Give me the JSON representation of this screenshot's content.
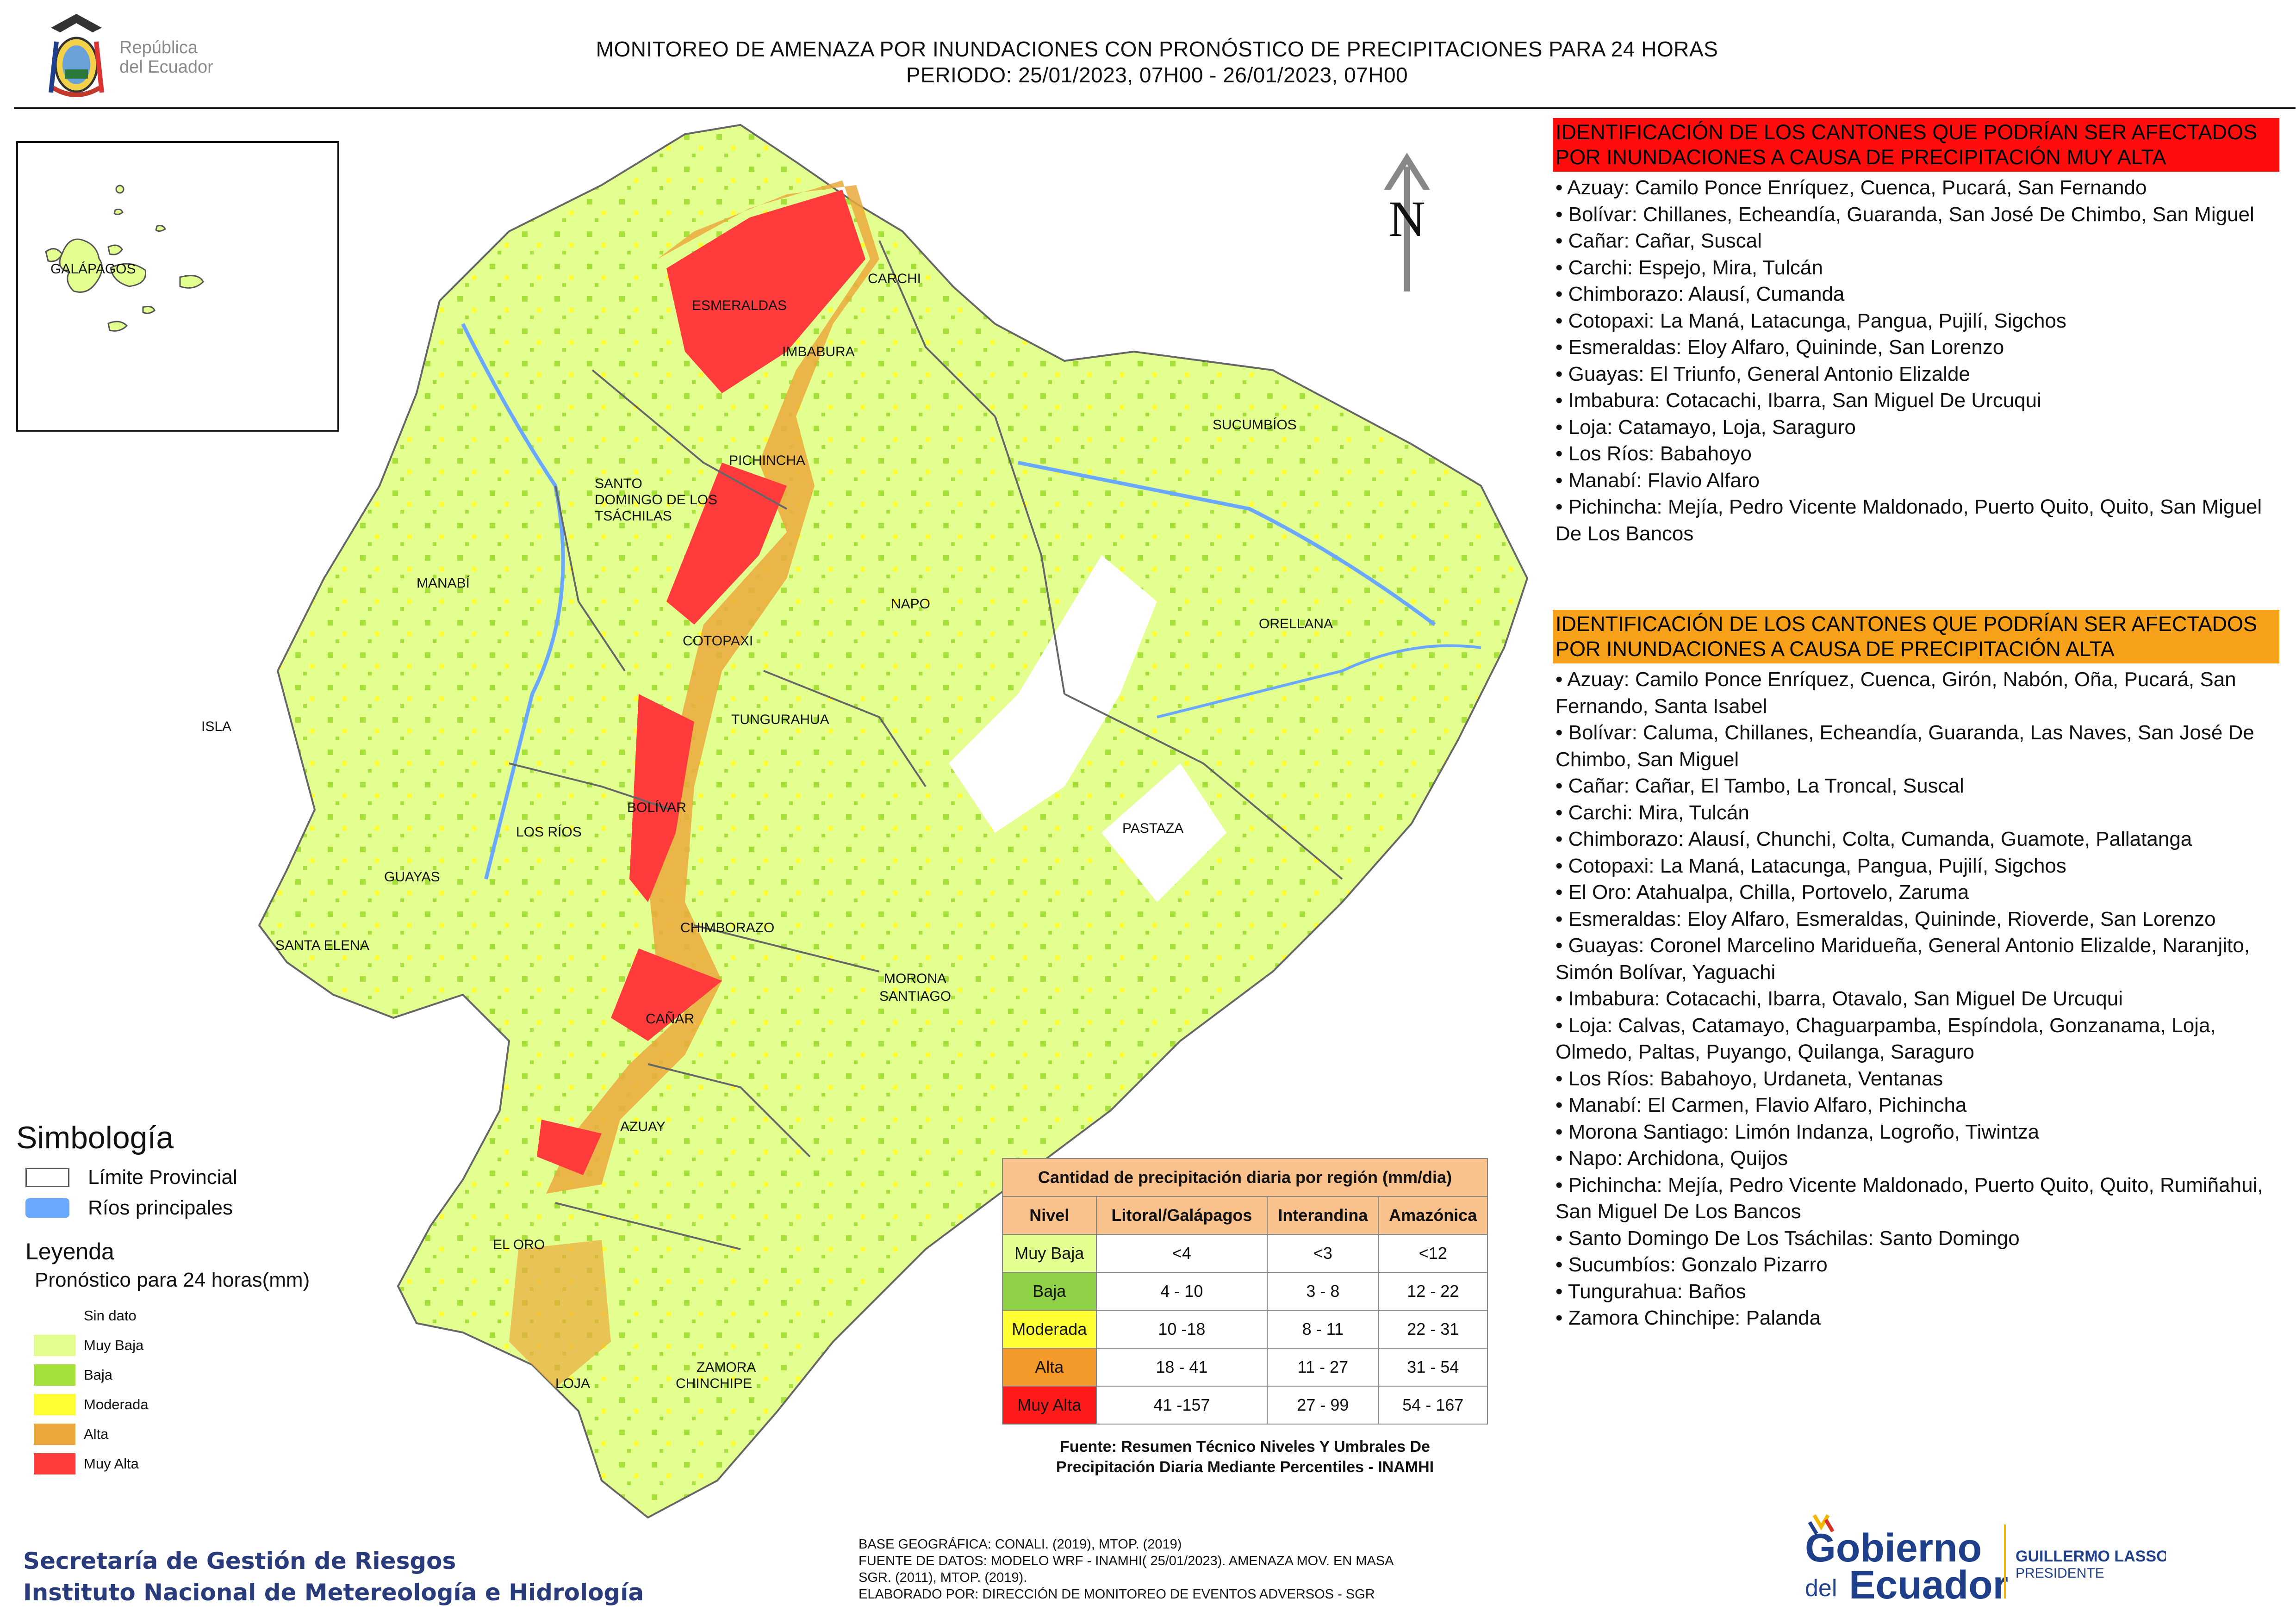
{
  "header": {
    "title_line1": "MONITOREO DE AMENAZA POR INUNDACIONES  CON PRONÓSTICO DE  PRECIPITACIONES PARA 24 HORAS",
    "title_line2": "PERIODO: 25/01/2023, 07H00 - 26/01/2023, 07H00",
    "republic_line1": "República",
    "republic_line2": "del Ecuador"
  },
  "north_label": "N",
  "map_labels": {
    "galapagos": "GALÁPAGOS",
    "esmeraldas": "ESMERALDAS",
    "carchi": "CARCHI",
    "imbabura": "IMBABURA",
    "sucumbios": "SUCUMBÍOS",
    "pichincha": "PICHINCHA",
    "santo_domingo_1": "SANTO",
    "santo_domingo_2": "DOMINGO DE LOS",
    "santo_domingo_3": "TSÁCHILAS",
    "manabi": "MANABÍ",
    "napo": "NAPO",
    "orellana": "ORELLANA",
    "cotopaxi": "COTOPAXI",
    "isla": "ISLA",
    "tungurahua": "TUNGURAHUA",
    "bolivar": "BOLÍVAR",
    "pastaza": "PASTAZA",
    "los_rios": "LOS RÍOS",
    "guayas": "GUAYAS",
    "chimborazo": "CHIMBORAZO",
    "santa_elena": "SANTA ELENA",
    "morona_1": "MORONA",
    "morona_2": "SANTIAGO",
    "canar": "CAÑAR",
    "azuay": "AZUAY",
    "el_oro": "EL ORO",
    "loja": "LOJA",
    "zamora_1": "ZAMORA",
    "zamora_2": "CHINCHIPE"
  },
  "panel_very_high": {
    "heading": "IDENTIFICACIÓN DE LOS CANTONES QUE PODRÍAN SER AFECTADOS POR INUNDACIONES  A CAUSA DE PRECIPITACIÓN MUY ALTA",
    "items": [
      "• Azuay: Camilo Ponce Enríquez, Cuenca, Pucará, San Fernando",
      "• Bolívar: Chillanes, Echeandía, Guaranda, San José De Chimbo, San Miguel",
      "• Cañar: Cañar, Suscal",
      "• Carchi: Espejo, Mira, Tulcán",
      "• Chimborazo: Alausí, Cumanda",
      "• Cotopaxi: La Maná, Latacunga, Pangua, Pujilí, Sigchos",
      "• Esmeraldas: Eloy Alfaro, Quininde, San Lorenzo",
      "• Guayas: El Triunfo, General Antonio Elizalde",
      "• Imbabura: Cotacachi, Ibarra, San Miguel De Urcuqui",
      "• Loja: Catamayo, Loja, Saraguro",
      "• Los Ríos: Babahoyo",
      "• Manabí: Flavio Alfaro",
      "• Pichincha: Mejía, Pedro Vicente Maldonado, Puerto Quito, Quito, San Miguel De Los Bancos"
    ]
  },
  "panel_high": {
    "heading": "IDENTIFICACIÓN DE LOS CANTONES QUE  PODRÍAN SER AFECTADOS POR INUNDACIONES  A CAUSA DE PRECIPITACIÓN ALTA",
    "items": [
      "• Azuay: Camilo Ponce Enríquez, Cuenca, Girón, Nabón, Oña, Pucará, San Fernando, Santa Isabel",
      "• Bolívar: Caluma, Chillanes, Echeandía, Guaranda, Las Naves, San José De Chimbo, San Miguel",
      "• Cañar: Cañar, El Tambo, La Troncal, Suscal",
      "• Carchi: Mira, Tulcán",
      "• Chimborazo: Alausí, Chunchi, Colta, Cumanda, Guamote, Pallatanga",
      "• Cotopaxi: La Maná, Latacunga, Pangua, Pujilí, Sigchos",
      "• El Oro: Atahualpa, Chilla, Portovelo, Zaruma",
      "• Esmeraldas: Eloy Alfaro, Esmeraldas, Quininde, Rioverde, San Lorenzo",
      "• Guayas: Coronel Marcelino Maridueña, General Antonio Elizalde, Naranjito, Simón Bolívar, Yaguachi",
      "• Imbabura: Cotacachi, Ibarra, Otavalo, San Miguel De Urcuqui",
      "• Loja: Calvas, Catamayo, Chaguarpamba, Espíndola, Gonzanama, Loja, Olmedo, Paltas, Puyango, Quilanga, Saraguro",
      "• Los Ríos: Babahoyo, Urdaneta, Ventanas",
      "• Manabí: El Carmen, Flavio Alfaro, Pichincha",
      "• Morona Santiago: Limón Indanza, Logroño, Tiwintza",
      "• Napo: Archidona, Quijos",
      "• Pichincha: Mejía, Pedro Vicente Maldonado, Puerto Quito, Quito, Rumiñahui, San Miguel De Los Bancos",
      "• Santo Domingo De Los Tsáchilas: Santo Domingo",
      "• Sucumbíos: Gonzalo Pizarro",
      "• Tungurahua: Baños",
      "• Zamora Chinchipe: Palanda"
    ]
  },
  "legend": {
    "title": "Simbología",
    "boundary_label": "Límite Provincial",
    "rivers_label": "Ríos principales",
    "leyenda_label": "Leyenda",
    "forecast_label": "Pronóstico para 24 horas(mm)",
    "classes": [
      {
        "label": "Sin dato",
        "color": "#ffffff"
      },
      {
        "label": "Muy Baja",
        "color": "#e2ff8f"
      },
      {
        "label": "Baja",
        "color": "#a6e03a"
      },
      {
        "label": "Moderada",
        "color": "#ffff33"
      },
      {
        "label": "Alta",
        "color": "#eba93d"
      },
      {
        "label": "Muy Alta",
        "color": "#ff3b3b"
      }
    ]
  },
  "precip_table": {
    "title": "Cantidad de precipitación diaria por región (mm/dia)",
    "headers": [
      "Nivel",
      "Litoral/Galápagos",
      "Interandina",
      "Amazónica"
    ],
    "rows": [
      {
        "level": "Muy Baja",
        "color": "#e2ff8f",
        "cells": [
          "<4",
          "<3",
          "<12"
        ]
      },
      {
        "level": "Baja",
        "color": "#8fd147",
        "cells": [
          "4 - 10",
          "3 - 8",
          "12 - 22"
        ]
      },
      {
        "level": "Moderada",
        "color": "#ffff33",
        "cells": [
          "10 -18",
          "8 - 11",
          "22 - 31"
        ]
      },
      {
        "level": "Alta",
        "color": "#f49a2b",
        "cells": [
          "18 - 41",
          "11 - 27",
          "31 - 54"
        ]
      },
      {
        "level": "Muy Alta",
        "color": "#ff1a1a",
        "cells": [
          "41 -157",
          "27 - 99",
          "54 - 167"
        ]
      }
    ],
    "source_line1": "Fuente: Resumen Técnico Niveles Y Umbrales De",
    "source_line2": "Precipitación Diaria Mediante Percentiles - INAMHI"
  },
  "footer": {
    "org_line1": "Secretaría de Gestión de Riesgos",
    "org_line2": "Instituto Nacional de Metereología e Hidrología",
    "base_line1": "BASE GEOGRÁFICA: CONALI. (2019), MTOP. (2019)",
    "base_line2": "FUENTE DE DATOS: MODELO WRF - INAMHI( 25/01/2023).  AMENAZA MOV. EN MASA",
    "base_line3": "SGR. (2011), MTOP. (2019).",
    "base_line4": "ELABORADO POR: DIRECCIÓN DE MONITOREO DE EVENTOS ADVERSOS - SGR",
    "gob_line1": "Gobierno",
    "gob_line2": "del",
    "gob_line3": "Ecuador",
    "pres_line1": "GUILLERMO LASSO",
    "pres_line2": "PRESIDENTE"
  }
}
